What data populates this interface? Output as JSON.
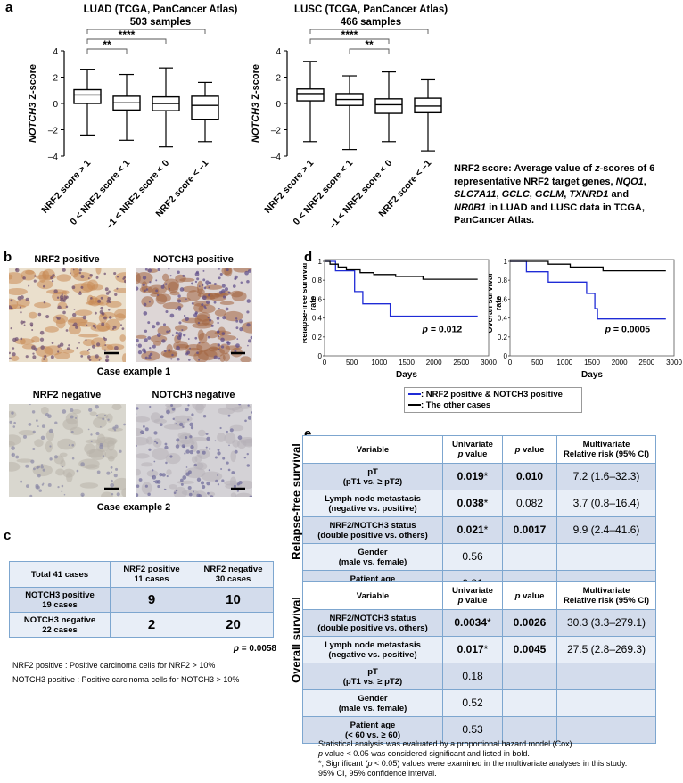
{
  "panels": {
    "a": "a",
    "b": "b",
    "c": "c",
    "d": "d",
    "e": "e"
  },
  "panel_a": {
    "luad_title": "LUAD (TCGA, PanCancer Atlas)",
    "luad_samples": "503 samples",
    "lusc_title": "LUSC (TCGA, PanCancer Atlas)",
    "lusc_samples": "466 samples",
    "ylabel_gene": "NOTCH3",
    "ylabel_rest": " Z-score",
    "categories": [
      "NRF2 score > 1",
      "0 < NRF2 score < 1",
      "–1 < NRF2 score < 0",
      "NRF2 score < –1"
    ],
    "note_html_parts": {
      "line1": "NRF2 score: Average value of",
      "z": "z",
      "line1b": "-scores of 6",
      "line2": "representative NRF2 target genes,",
      "g1": "NQO1",
      "g2": "SLC7A11",
      "g3": "GCLC",
      "g4": "GCLM",
      "g5": "TXNRD1",
      "and": "and",
      "g6": "NR0B1",
      "line4": "in LUAD and LUSC data in TCGA,",
      "line5": "PanCancer Atlas."
    }
  },
  "chart_data": [
    {
      "type": "box",
      "title": "LUAD (TCGA, PanCancer Atlas)",
      "subtitle": "503 samples",
      "ylabel": "NOTCH3 Z-score",
      "ylim": [
        -4,
        4
      ],
      "yticks": [
        -4,
        -2,
        0,
        2,
        4
      ],
      "categories": [
        "NRF2 score > 1",
        "0 < NRF2 score < 1",
        "–1 < NRF2 score < 0",
        "NRF2 score < –1"
      ],
      "boxes": [
        {
          "min": -2.4,
          "q1": 0.0,
          "median": 0.65,
          "q3": 1.05,
          "max": 2.6
        },
        {
          "min": -2.8,
          "q1": -0.5,
          "median": 0.05,
          "q3": 0.55,
          "max": 2.2
        },
        {
          "min": -3.3,
          "q1": -0.55,
          "median": 0.0,
          "q3": 0.5,
          "max": 2.7
        },
        {
          "min": -2.9,
          "q1": -1.2,
          "median": -0.15,
          "q3": 0.55,
          "max": 1.6
        }
      ],
      "significance": [
        {
          "from": 0,
          "to": 1,
          "label": "**"
        },
        {
          "from": 0,
          "to": 2,
          "label": "****"
        },
        {
          "from": 0,
          "to": 3,
          "label": "***"
        }
      ]
    },
    {
      "type": "box",
      "title": "LUSC (TCGA, PanCancer Atlas)",
      "subtitle": "466 samples",
      "ylabel": "NOTCH3 Z-score",
      "ylim": [
        -4,
        4
      ],
      "yticks": [
        -4,
        -2,
        0,
        2,
        4
      ],
      "categories": [
        "NRF2 score > 1",
        "0 < NRF2 score < 1",
        "–1 < NRF2 score < 0",
        "NRF2 score < –1"
      ],
      "boxes": [
        {
          "min": -2.9,
          "q1": 0.2,
          "median": 0.75,
          "q3": 1.1,
          "max": 3.2
        },
        {
          "min": -3.5,
          "q1": -0.15,
          "median": 0.3,
          "q3": 0.75,
          "max": 2.1
        },
        {
          "min": -2.9,
          "q1": -0.75,
          "median": -0.1,
          "q3": 0.35,
          "max": 2.4
        },
        {
          "min": -3.6,
          "q1": -0.7,
          "median": -0.2,
          "q3": 0.4,
          "max": 1.8
        }
      ],
      "significance": [
        {
          "from": 1,
          "to": 2,
          "label": "**"
        },
        {
          "from": 0,
          "to": 2,
          "label": "****"
        },
        {
          "from": 0,
          "to": 3,
          "label": "***"
        }
      ]
    },
    {
      "type": "line",
      "subtype": "kaplan-meier",
      "ylabel": "Relapse-free survival rate",
      "xlabel": "Days",
      "xlim": [
        0,
        3000
      ],
      "ylim": [
        0,
        1
      ],
      "xticks": [
        0,
        500,
        1000,
        1500,
        2000,
        2500,
        3000
      ],
      "yticks": [
        0,
        0.2,
        0.4,
        0.6,
        0.8,
        1
      ],
      "annotation": "p = 0.012",
      "series": [
        {
          "name": "NRF2 positive & NOTCH3 positive",
          "color": "#1f2bd6",
          "x": [
            0,
            200,
            200,
            550,
            550,
            700,
            700,
            1200,
            1200,
            2800
          ],
          "y": [
            1,
            1,
            0.9,
            0.9,
            0.68,
            0.68,
            0.55,
            0.55,
            0.42,
            0.42
          ]
        },
        {
          "name": "The other cases",
          "color": "#000000",
          "x": [
            0,
            100,
            100,
            250,
            250,
            400,
            400,
            650,
            650,
            900,
            900,
            1300,
            1300,
            1800,
            1800,
            2800
          ],
          "y": [
            1,
            1,
            0.97,
            0.97,
            0.94,
            0.94,
            0.91,
            0.91,
            0.88,
            0.88,
            0.86,
            0.86,
            0.84,
            0.84,
            0.81,
            0.81
          ]
        }
      ]
    },
    {
      "type": "line",
      "subtype": "kaplan-meier",
      "ylabel": "Overall survival rate",
      "xlabel": "Days",
      "xlim": [
        0,
        3000
      ],
      "ylim": [
        0,
        1
      ],
      "xticks": [
        0,
        500,
        1000,
        1500,
        2000,
        2500,
        3000
      ],
      "yticks": [
        0,
        0.2,
        0.4,
        0.6,
        0.8,
        1
      ],
      "annotation": "p = 0.0005",
      "series": [
        {
          "name": "NRF2 positive & NOTCH3 positive",
          "color": "#1f2bd6",
          "x": [
            0,
            300,
            300,
            700,
            700,
            1400,
            1400,
            1550,
            1550,
            1600,
            1600,
            2850
          ],
          "y": [
            1,
            1,
            0.89,
            0.89,
            0.78,
            0.78,
            0.66,
            0.66,
            0.5,
            0.5,
            0.39,
            0.39
          ]
        },
        {
          "name": "The other cases",
          "color": "#000000",
          "x": [
            0,
            700,
            700,
            1100,
            1100,
            1700,
            1700,
            2850
          ],
          "y": [
            1,
            1,
            0.97,
            0.97,
            0.94,
            0.94,
            0.9,
            0.9
          ]
        }
      ]
    }
  ],
  "panel_b": {
    "nrf2_pos": "NRF2 positive",
    "notch3_pos": "NOTCH3 positive",
    "nrf2_neg": "NRF2 negative",
    "notch3_neg": "NOTCH3 negative",
    "case1": "Case example 1",
    "case2": "Case example 2"
  },
  "panel_c": {
    "header": [
      "Total 41 cases",
      "NRF2 positive\n11 cases",
      "NRF2 negative\n30 cases"
    ],
    "rows": [
      {
        "label1": "NOTCH3 positive",
        "label2": "19 cases",
        "v1": "9",
        "v2": "10"
      },
      {
        "label1": "NOTCH3 negative",
        "label2": "22 cases",
        "v1": "2",
        "v2": "20"
      }
    ],
    "pvalue_p": "p",
    "pvalue_rest": " = 0.0058",
    "note1": "NRF2 positive : Positive carcinoma cells for NRF2 > 10%",
    "note2": "NOTCH3 positive : Positive carcinoma cells for NOTCH3 > 10%"
  },
  "panel_d": {
    "legend_blue": ": NRF2 positive & NOTCH3 positive",
    "legend_black": ": The other cases"
  },
  "panel_e": {
    "rfs_label": "Relapse-free survival",
    "os_label": "Overall survival",
    "header": {
      "variable": "Variable",
      "univ1": "Univariate",
      "univ2": "p value",
      "p": "p value",
      "multi1": "Multivariate",
      "multi2": "Relative risk (95% CI)"
    },
    "rfs_rows": [
      {
        "v1": "pT",
        "v2": "(pT1 vs. ≥ pT2)",
        "u": "0.019",
        "ustar": "*",
        "ubold": true,
        "p": "0.010",
        "pbold": true,
        "rr": "7.2 (1.6–32.3)"
      },
      {
        "v1": "Lymph node metastasis",
        "v2": "(negative vs. positive)",
        "u": "0.038",
        "ustar": "*",
        "ubold": true,
        "p": "0.082",
        "pbold": false,
        "rr": "3.7 (0.8–16.4)"
      },
      {
        "v1": "NRF2/NOTCH3 status",
        "v2": "(double positive vs. others)",
        "u": "0.021",
        "ustar": "*",
        "ubold": true,
        "p": "0.0017",
        "pbold": true,
        "rr": "9.9 (2.4–41.6)"
      },
      {
        "v1": "Gender",
        "v2": "(male vs. female)",
        "u": "0.56",
        "ustar": "",
        "ubold": false,
        "p": "",
        "pbold": false,
        "rr": ""
      },
      {
        "v1": "Patient age",
        "v2": "(< 60 vs. ≥ 60)",
        "u": "0.81",
        "ustar": "",
        "ubold": false,
        "p": "",
        "pbold": false,
        "rr": ""
      }
    ],
    "os_rows": [
      {
        "v1": "NRF2/NOTCH3 status",
        "v2": "(double positive vs. others)",
        "u": "0.0034",
        "ustar": "*",
        "ubold": true,
        "p": "0.0026",
        "pbold": true,
        "rr": "30.3 (3.3–279.1)"
      },
      {
        "v1": "Lymph node metastasis",
        "v2": "(negative vs. positive)",
        "u": "0.017",
        "ustar": "*",
        "ubold": true,
        "p": "0.0045",
        "pbold": true,
        "rr": "27.5 (2.8–269.3)"
      },
      {
        "v1": "pT",
        "v2": "(pT1 vs. ≥ pT2)",
        "u": "0.18",
        "ustar": "",
        "ubold": false,
        "p": "",
        "pbold": false,
        "rr": ""
      },
      {
        "v1": "Gender",
        "v2": "(male vs. female)",
        "u": "0.52",
        "ustar": "",
        "ubold": false,
        "p": "",
        "pbold": false,
        "rr": ""
      },
      {
        "v1": "Patient age",
        "v2": "(< 60 vs. ≥ 60)",
        "u": "0.53",
        "ustar": "",
        "ubold": false,
        "p": "",
        "pbold": false,
        "rr": ""
      }
    ],
    "footnote1": "Statistical analysis was evaluated by a proportional hazard model (Cox).",
    "footnote2_p": "p",
    "footnote2_rest": " value < 0.05 was considered significant and listed in bold.",
    "footnote3_a": "*; Significant (",
    "footnote3_p": "p",
    "footnote3_b": " < 0.05) values were examined in the multivariate analyses in this study.",
    "footnote4": "95% CI, 95% confidence interval."
  },
  "colors": {
    "table_border": "#7da6cf",
    "row_dark": "#d3dcec",
    "row_light": "#e8eef7",
    "km_blue": "#1f2bd6"
  }
}
